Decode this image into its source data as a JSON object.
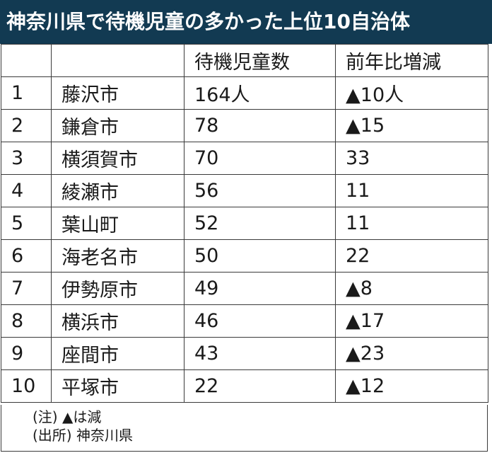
{
  "title": "神奈川県で待機児童の多かった上位10自治体",
  "headers": {
    "rank": "",
    "city": "",
    "count": "待機児童数",
    "change": "前年比増減"
  },
  "rows": [
    {
      "rank": "1",
      "city": "藤沢市",
      "count": "164人",
      "change": "▲10人"
    },
    {
      "rank": "2",
      "city": "鎌倉市",
      "count": "78",
      "change": "▲15"
    },
    {
      "rank": "3",
      "city": "横須賀市",
      "count": "70",
      "change": "33"
    },
    {
      "rank": "4",
      "city": "綾瀬市",
      "count": "56",
      "change": "11"
    },
    {
      "rank": "5",
      "city": "葉山町",
      "count": "52",
      "change": "11"
    },
    {
      "rank": "6",
      "city": "海老名市",
      "count": "50",
      "change": "22"
    },
    {
      "rank": "7",
      "city": "伊勢原市",
      "count": "49",
      "change": "▲8"
    },
    {
      "rank": "8",
      "city": "横浜市",
      "count": "46",
      "change": "▲17"
    },
    {
      "rank": "9",
      "city": "座間市",
      "count": "43",
      "change": "▲23"
    },
    {
      "rank": "10",
      "city": "平塚市",
      "count": "22",
      "change": "▲12"
    }
  ],
  "notes": {
    "note": "(注) ▲は減",
    "source": "(出所) 神奈川県"
  }
}
